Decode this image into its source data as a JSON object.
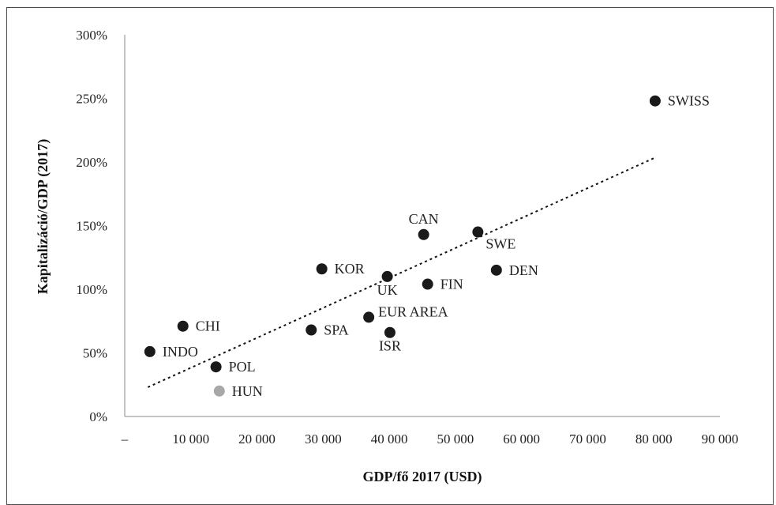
{
  "chart_data": {
    "type": "scatter",
    "xlabel": "GDP/fő 2017 (USD)",
    "ylabel": "Kapitalizáció/GDP (2017)",
    "xlim": [
      0,
      90000
    ],
    "ylim": [
      0,
      300
    ],
    "x_ticks": [
      {
        "value": 0,
        "label": "–"
      },
      {
        "value": 10000,
        "label": "10 000"
      },
      {
        "value": 20000,
        "label": "20 000"
      },
      {
        "value": 30000,
        "label": "30 000"
      },
      {
        "value": 40000,
        "label": "40 000"
      },
      {
        "value": 50000,
        "label": "50 000"
      },
      {
        "value": 60000,
        "label": "60 000"
      },
      {
        "value": 70000,
        "label": "70 000"
      },
      {
        "value": 80000,
        "label": "80 000"
      },
      {
        "value": 90000,
        "label": "90 000"
      }
    ],
    "y_ticks": [
      {
        "value": 0,
        "label": "0%"
      },
      {
        "value": 50,
        "label": "50%"
      },
      {
        "value": 100,
        "label": "100%"
      },
      {
        "value": 150,
        "label": "150%"
      },
      {
        "value": 200,
        "label": "200%"
      },
      {
        "value": 250,
        "label": "250%"
      },
      {
        "value": 300,
        "label": "300%"
      }
    ],
    "grid": false,
    "legend": "none",
    "colors": {
      "default": "#1a1a1a",
      "highlight": "#a8a8a8"
    },
    "points": [
      {
        "label": "INDO",
        "x": 3800,
        "y": 51,
        "label_pos": "right"
      },
      {
        "label": "CHI",
        "x": 8800,
        "y": 71,
        "label_pos": "right"
      },
      {
        "label": "POL",
        "x": 13800,
        "y": 39,
        "label_pos": "right"
      },
      {
        "label": "HUN",
        "x": 14300,
        "y": 20,
        "label_pos": "right",
        "highlight": true
      },
      {
        "label": "SPA",
        "x": 28200,
        "y": 68,
        "label_pos": "right"
      },
      {
        "label": "KOR",
        "x": 29800,
        "y": 116,
        "label_pos": "right"
      },
      {
        "label": "EUR AREA",
        "x": 36900,
        "y": 78,
        "label_pos": "above-right"
      },
      {
        "label": "UK",
        "x": 39700,
        "y": 110,
        "label_pos": "below"
      },
      {
        "label": "ISR",
        "x": 40100,
        "y": 66,
        "label_pos": "below"
      },
      {
        "label": "CAN",
        "x": 45200,
        "y": 143,
        "label_pos": "above"
      },
      {
        "label": "FIN",
        "x": 45800,
        "y": 104,
        "label_pos": "right"
      },
      {
        "label": "SWE",
        "x": 53400,
        "y": 145,
        "label_pos": "below-right"
      },
      {
        "label": "DEN",
        "x": 56200,
        "y": 115,
        "label_pos": "right"
      },
      {
        "label": "SWISS",
        "x": 80200,
        "y": 248,
        "label_pos": "right"
      }
    ],
    "trendline": {
      "style": "dotted",
      "x_start": 3500,
      "y_start": 23,
      "x_end": 80000,
      "y_end": 203
    }
  }
}
